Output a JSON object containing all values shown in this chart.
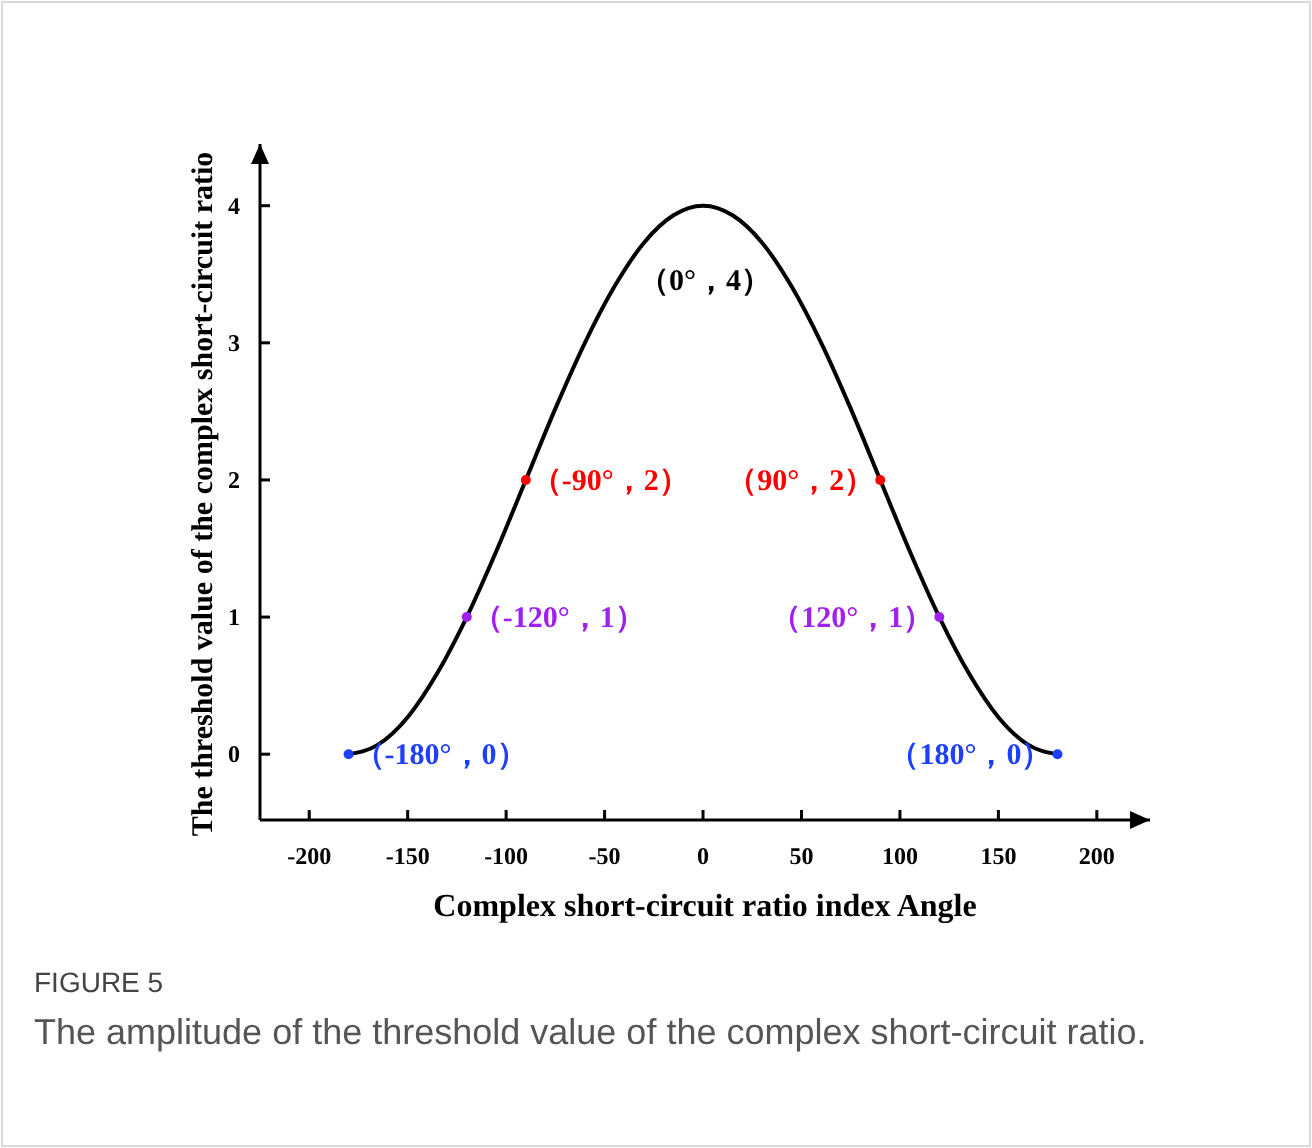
{
  "chart_data": {
    "type": "line",
    "xlabel": "Complex short-circuit ratio index Angle",
    "ylabel": "The threshold value of the complex short-circuit ratio",
    "xlim": [
      -225,
      227
    ],
    "ylim": [
      -0.48,
      4.45
    ],
    "xticks": [
      -200,
      -150,
      -100,
      -50,
      0,
      50,
      100,
      150,
      200
    ],
    "yticks": [
      0,
      1,
      2,
      3,
      4
    ],
    "grid": false,
    "series": [
      {
        "color": "#000000",
        "marker": "none",
        "x": [
          -180,
          -165,
          -150,
          -135,
          -120,
          -105,
          -90,
          -75,
          -60,
          -45,
          -30,
          -15,
          0,
          15,
          30,
          45,
          60,
          75,
          90,
          105,
          120,
          135,
          150,
          165,
          180
        ],
        "values": [
          0,
          0.07,
          0.27,
          0.59,
          1,
          1.48,
          2,
          2.52,
          3,
          3.41,
          3.73,
          3.93,
          4,
          3.93,
          3.73,
          3.41,
          3,
          2.52,
          2,
          1.48,
          1,
          0.59,
          0.27,
          0.07,
          0
        ]
      },
      {
        "type": "scatter",
        "color": "#ff0000",
        "marker": "circle",
        "x": [
          -90,
          90
        ],
        "values": [
          2,
          2
        ]
      },
      {
        "type": "scatter",
        "color": "#a020f0",
        "marker": "circle",
        "x": [
          -120,
          120
        ],
        "values": [
          1,
          1
        ]
      },
      {
        "type": "scatter",
        "color": "#1f3fff",
        "marker": "circle",
        "x": [
          -180,
          180
        ],
        "values": [
          0,
          0
        ]
      }
    ],
    "annotations": [
      {
        "text": "（0°，4）",
        "x": 0,
        "y": 4
      },
      {
        "text": "（-90°，2）",
        "x": -90,
        "y": 2
      },
      {
        "text": "（90°，2）",
        "x": 90,
        "y": 2
      },
      {
        "text": "（-120°，1）",
        "x": -120,
        "y": 1
      },
      {
        "text": "（120°，1）",
        "x": 120,
        "y": 1
      },
      {
        "text": "（-180°，0）",
        "x": -180,
        "y": 0
      },
      {
        "text": "（180°，0）",
        "x": 180,
        "y": 0
      },
      "FIGURE 5",
      "The amplitude of the threshold value of the complex short-circuit ratio."
    ]
  }
}
